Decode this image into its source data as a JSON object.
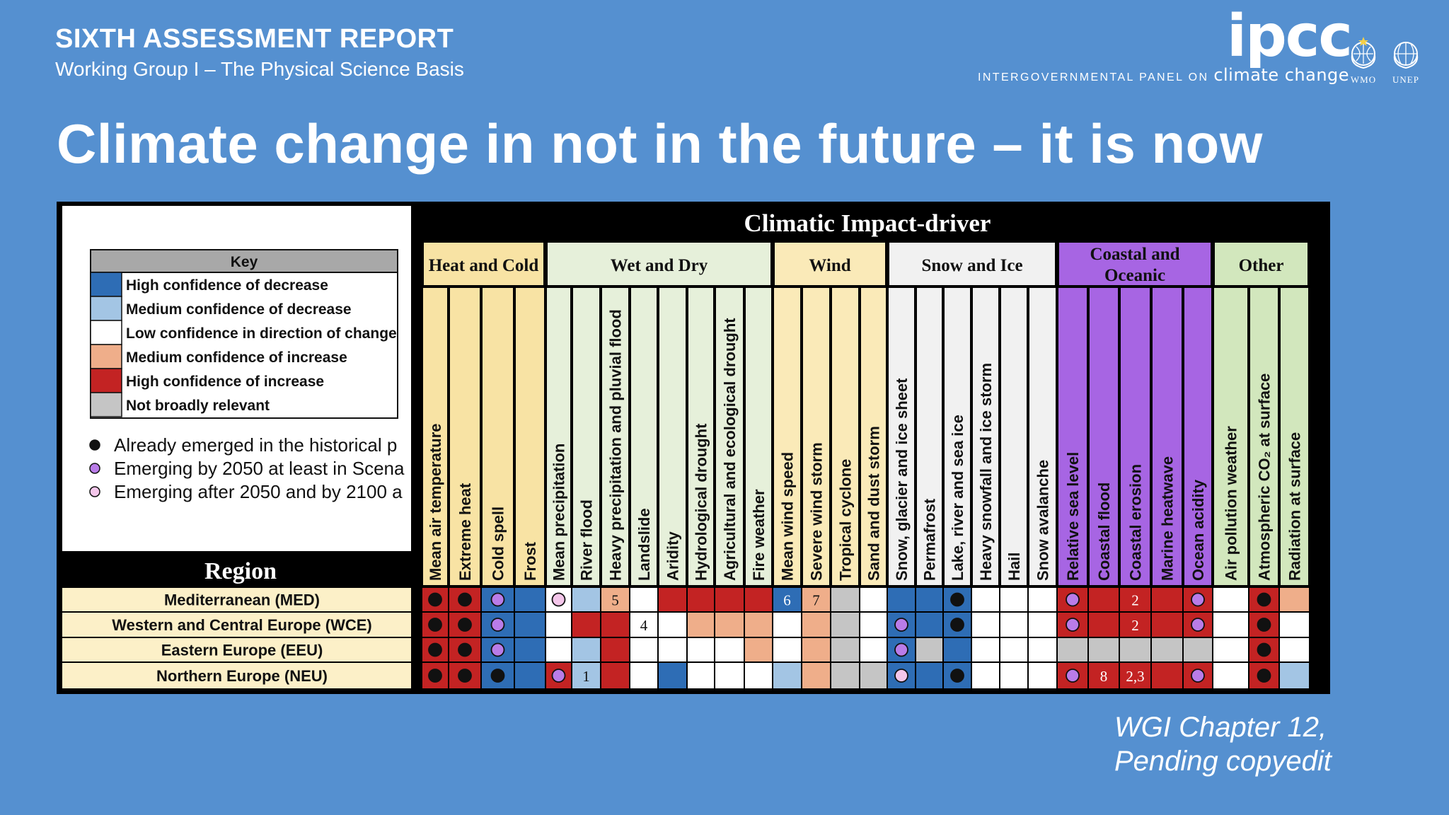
{
  "header": {
    "report_title": "SIXTH ASSESSMENT REPORT",
    "report_subtitle": "Working Group I – The Physical Science Basis",
    "logo_text": "ipcc",
    "logo_tagline_prefix": "INTERGOVERNMENTAL PANEL ON",
    "logo_tagline_suffix": "climate change",
    "emblems": [
      "WMO",
      "UNEP"
    ]
  },
  "slide_title": "Climate change in not in the future – it is now",
  "footnote": [
    "WGI Chapter 12,",
    "Pending copyedit"
  ],
  "figure": {
    "header": "Climatic Impact-driver",
    "region_header": "Region",
    "key": {
      "title": "Key",
      "items": [
        {
          "color": "#2e6db5",
          "label": "High confidence of decrease"
        },
        {
          "color": "#a3c5e4",
          "label": "Medium confidence of decrease"
        },
        {
          "color": "#ffffff",
          "label": "Low confidence in direction of change"
        },
        {
          "color": "#efae8a",
          "label": "Medium confidence of increase"
        },
        {
          "color": "#c32323",
          "label": "High confidence of increase"
        },
        {
          "color": "#c5c5c5",
          "label": "Not broadly relevant"
        }
      ],
      "emergence": [
        {
          "marker": "black",
          "label": "Already emerged in the historical p"
        },
        {
          "marker": "purple",
          "label": "Emerging by 2050 at least in Scena"
        },
        {
          "marker": "pink",
          "label": "Emerging after 2050 and by 2100 a"
        }
      ]
    },
    "groups": [
      {
        "name": "Heat and Cold",
        "lines": [
          "Heat and Cold"
        ],
        "color": "#f8e3a4",
        "cols": [
          "Mean air temperature",
          "Extreme heat",
          "Cold spell",
          "Frost"
        ]
      },
      {
        "name": "Wet and Dry",
        "lines": [
          "Wet and Dry"
        ],
        "color": "#e6f0da",
        "cols": [
          "Mean precipitation",
          "River flood",
          "Heavy precipitation and pluvial flood",
          "Landslide",
          "Aridity",
          "Hydrological drought",
          "Agricultural and ecological drought",
          "Fire weather"
        ]
      },
      {
        "name": "Wind",
        "lines": [
          "Wind"
        ],
        "color": "#faeab8",
        "cols": [
          "Mean wind speed",
          "Severe wind storm",
          "Tropical cyclone",
          "Sand and dust storm"
        ]
      },
      {
        "name": "Snow and Ice",
        "lines": [
          "Snow and Ice"
        ],
        "color": "#f1f1f1",
        "cols": [
          "Snow, glacier and ice sheet",
          "Permafrost",
          "Lake, river and sea ice",
          "Heavy snowfall and ice storm",
          "Hail",
          "Snow avalanche"
        ]
      },
      {
        "name": "Coastal and Oceanic",
        "lines": [
          "Coastal and",
          "Oceanic"
        ],
        "color": "#a765e3",
        "cols": [
          "Relative sea level",
          "Coastal flood",
          "Coastal erosion",
          "Marine heatwave",
          "Ocean acidity"
        ]
      },
      {
        "name": "Other",
        "lines": [
          "Other"
        ],
        "color": "#d2e7bd",
        "cols": [
          "Air pollution weather",
          "Atmospheric CO₂ at surface",
          "Radiation at surface"
        ]
      }
    ],
    "rows": [
      {
        "region": "Mediterranean (MED)",
        "cells": [
          "HI",
          "HI",
          "HD",
          "HD",
          "LO",
          "MD",
          "MI",
          "LO",
          "HI",
          "HI",
          "HI",
          "HI",
          "HD",
          "MI",
          "NR",
          "LO",
          "HD",
          "HD",
          "HD",
          "LO",
          "LO",
          "LO",
          "HI",
          "HI",
          "HI",
          "HI",
          "HI",
          "LO",
          "HI",
          "MI"
        ],
        "markers": [
          "black",
          "black",
          "purple",
          "",
          "pink",
          "",
          "",
          "",
          "",
          "",
          "",
          "",
          "",
          "",
          "",
          "",
          "",
          "",
          "black",
          "",
          "",
          "",
          "purple",
          "",
          "",
          "",
          "purple",
          "",
          "black",
          ""
        ],
        "notes": [
          "",
          "",
          "",
          "",
          "",
          "",
          "5",
          "",
          "",
          "",
          "",
          "",
          "6",
          "7",
          "",
          "",
          "",
          "",
          "",
          "",
          "",
          "",
          "",
          "",
          "2",
          "",
          "",
          "",
          "",
          ""
        ]
      },
      {
        "region": "Western and Central Europe (WCE)",
        "cells": [
          "HI",
          "HI",
          "HD",
          "HD",
          "LO",
          "HI",
          "HI",
          "LO",
          "LO",
          "MI",
          "MI",
          "MI",
          "LO",
          "MI",
          "NR",
          "LO",
          "HD",
          "HD",
          "HD",
          "LO",
          "LO",
          "LO",
          "HI",
          "HI",
          "HI",
          "HI",
          "HI",
          "LO",
          "HI",
          "LO"
        ],
        "markers": [
          "black",
          "black",
          "purple",
          "",
          "",
          "",
          "",
          "",
          "",
          "",
          "",
          "",
          "",
          "",
          "",
          "",
          "purple",
          "",
          "black",
          "",
          "",
          "",
          "purple",
          "",
          "",
          "",
          "purple",
          "",
          "black",
          ""
        ],
        "notes": [
          "",
          "",
          "",
          "",
          "",
          "",
          "",
          "4",
          "",
          "",
          "",
          "",
          "",
          "",
          "",
          "",
          "",
          "",
          "",
          "",
          "",
          "",
          "",
          "",
          "2",
          "",
          "",
          "",
          "",
          ""
        ]
      },
      {
        "region": "Eastern Europe (EEU)",
        "cells": [
          "HI",
          "HI",
          "HD",
          "HD",
          "LO",
          "MD",
          "HI",
          "LO",
          "LO",
          "LO",
          "LO",
          "MI",
          "LO",
          "MI",
          "NR",
          "LO",
          "HD",
          "NR",
          "HD",
          "LO",
          "LO",
          "LO",
          "NR",
          "NR",
          "NR",
          "NR",
          "NR",
          "LO",
          "HI",
          "LO"
        ],
        "markers": [
          "black",
          "black",
          "purple",
          "",
          "",
          "",
          "",
          "",
          "",
          "",
          "",
          "",
          "",
          "",
          "",
          "",
          "purple",
          "",
          "",
          "",
          "",
          "",
          "",
          "",
          "",
          "",
          "",
          "",
          "black",
          ""
        ],
        "notes": [
          "",
          "",
          "",
          "",
          "",
          "",
          "",
          "",
          "",
          "",
          "",
          "",
          "",
          "",
          "",
          "",
          "",
          "",
          "",
          "",
          "",
          "",
          "",
          "",
          "",
          "",
          "",
          "",
          "",
          ""
        ]
      },
      {
        "region": "Northern Europe (NEU)",
        "cells": [
          "HI",
          "HI",
          "HD",
          "HD",
          "HI",
          "MD",
          "HI",
          "LO",
          "HD",
          "LO",
          "LO",
          "LO",
          "MD",
          "MI",
          "NR",
          "NR",
          "HD",
          "HD",
          "HD",
          "LO",
          "LO",
          "LO",
          "HI",
          "HI",
          "HI",
          "HI",
          "HI",
          "LO",
          "HI",
          "MD"
        ],
        "markers": [
          "black",
          "black",
          "black",
          "",
          "purple",
          "",
          "",
          "",
          "",
          "",
          "",
          "",
          "",
          "",
          "",
          "",
          "pink",
          "",
          "black",
          "",
          "",
          "",
          "purple",
          "",
          "",
          "",
          "purple",
          "",
          "black",
          ""
        ],
        "notes": [
          "",
          "",
          "",
          "",
          "",
          "1",
          "",
          "",
          "",
          "",
          "",
          "",
          "",
          "",
          "",
          "",
          "",
          "",
          "",
          "",
          "",
          "",
          "",
          "8",
          "2,3",
          "",
          "",
          "",
          "",
          ""
        ]
      }
    ],
    "colors": {
      "HD": "#2e6db5",
      "MD": "#a3c5e4",
      "LO": "#ffffff",
      "MI": "#efae8a",
      "HI": "#c32323",
      "NR": "#c5c5c5",
      "black": "#111111",
      "purple": "#b97ce8",
      "pink": "#f4c6ea",
      "region_bg": "#fcf0c8",
      "band": "#000000"
    }
  }
}
